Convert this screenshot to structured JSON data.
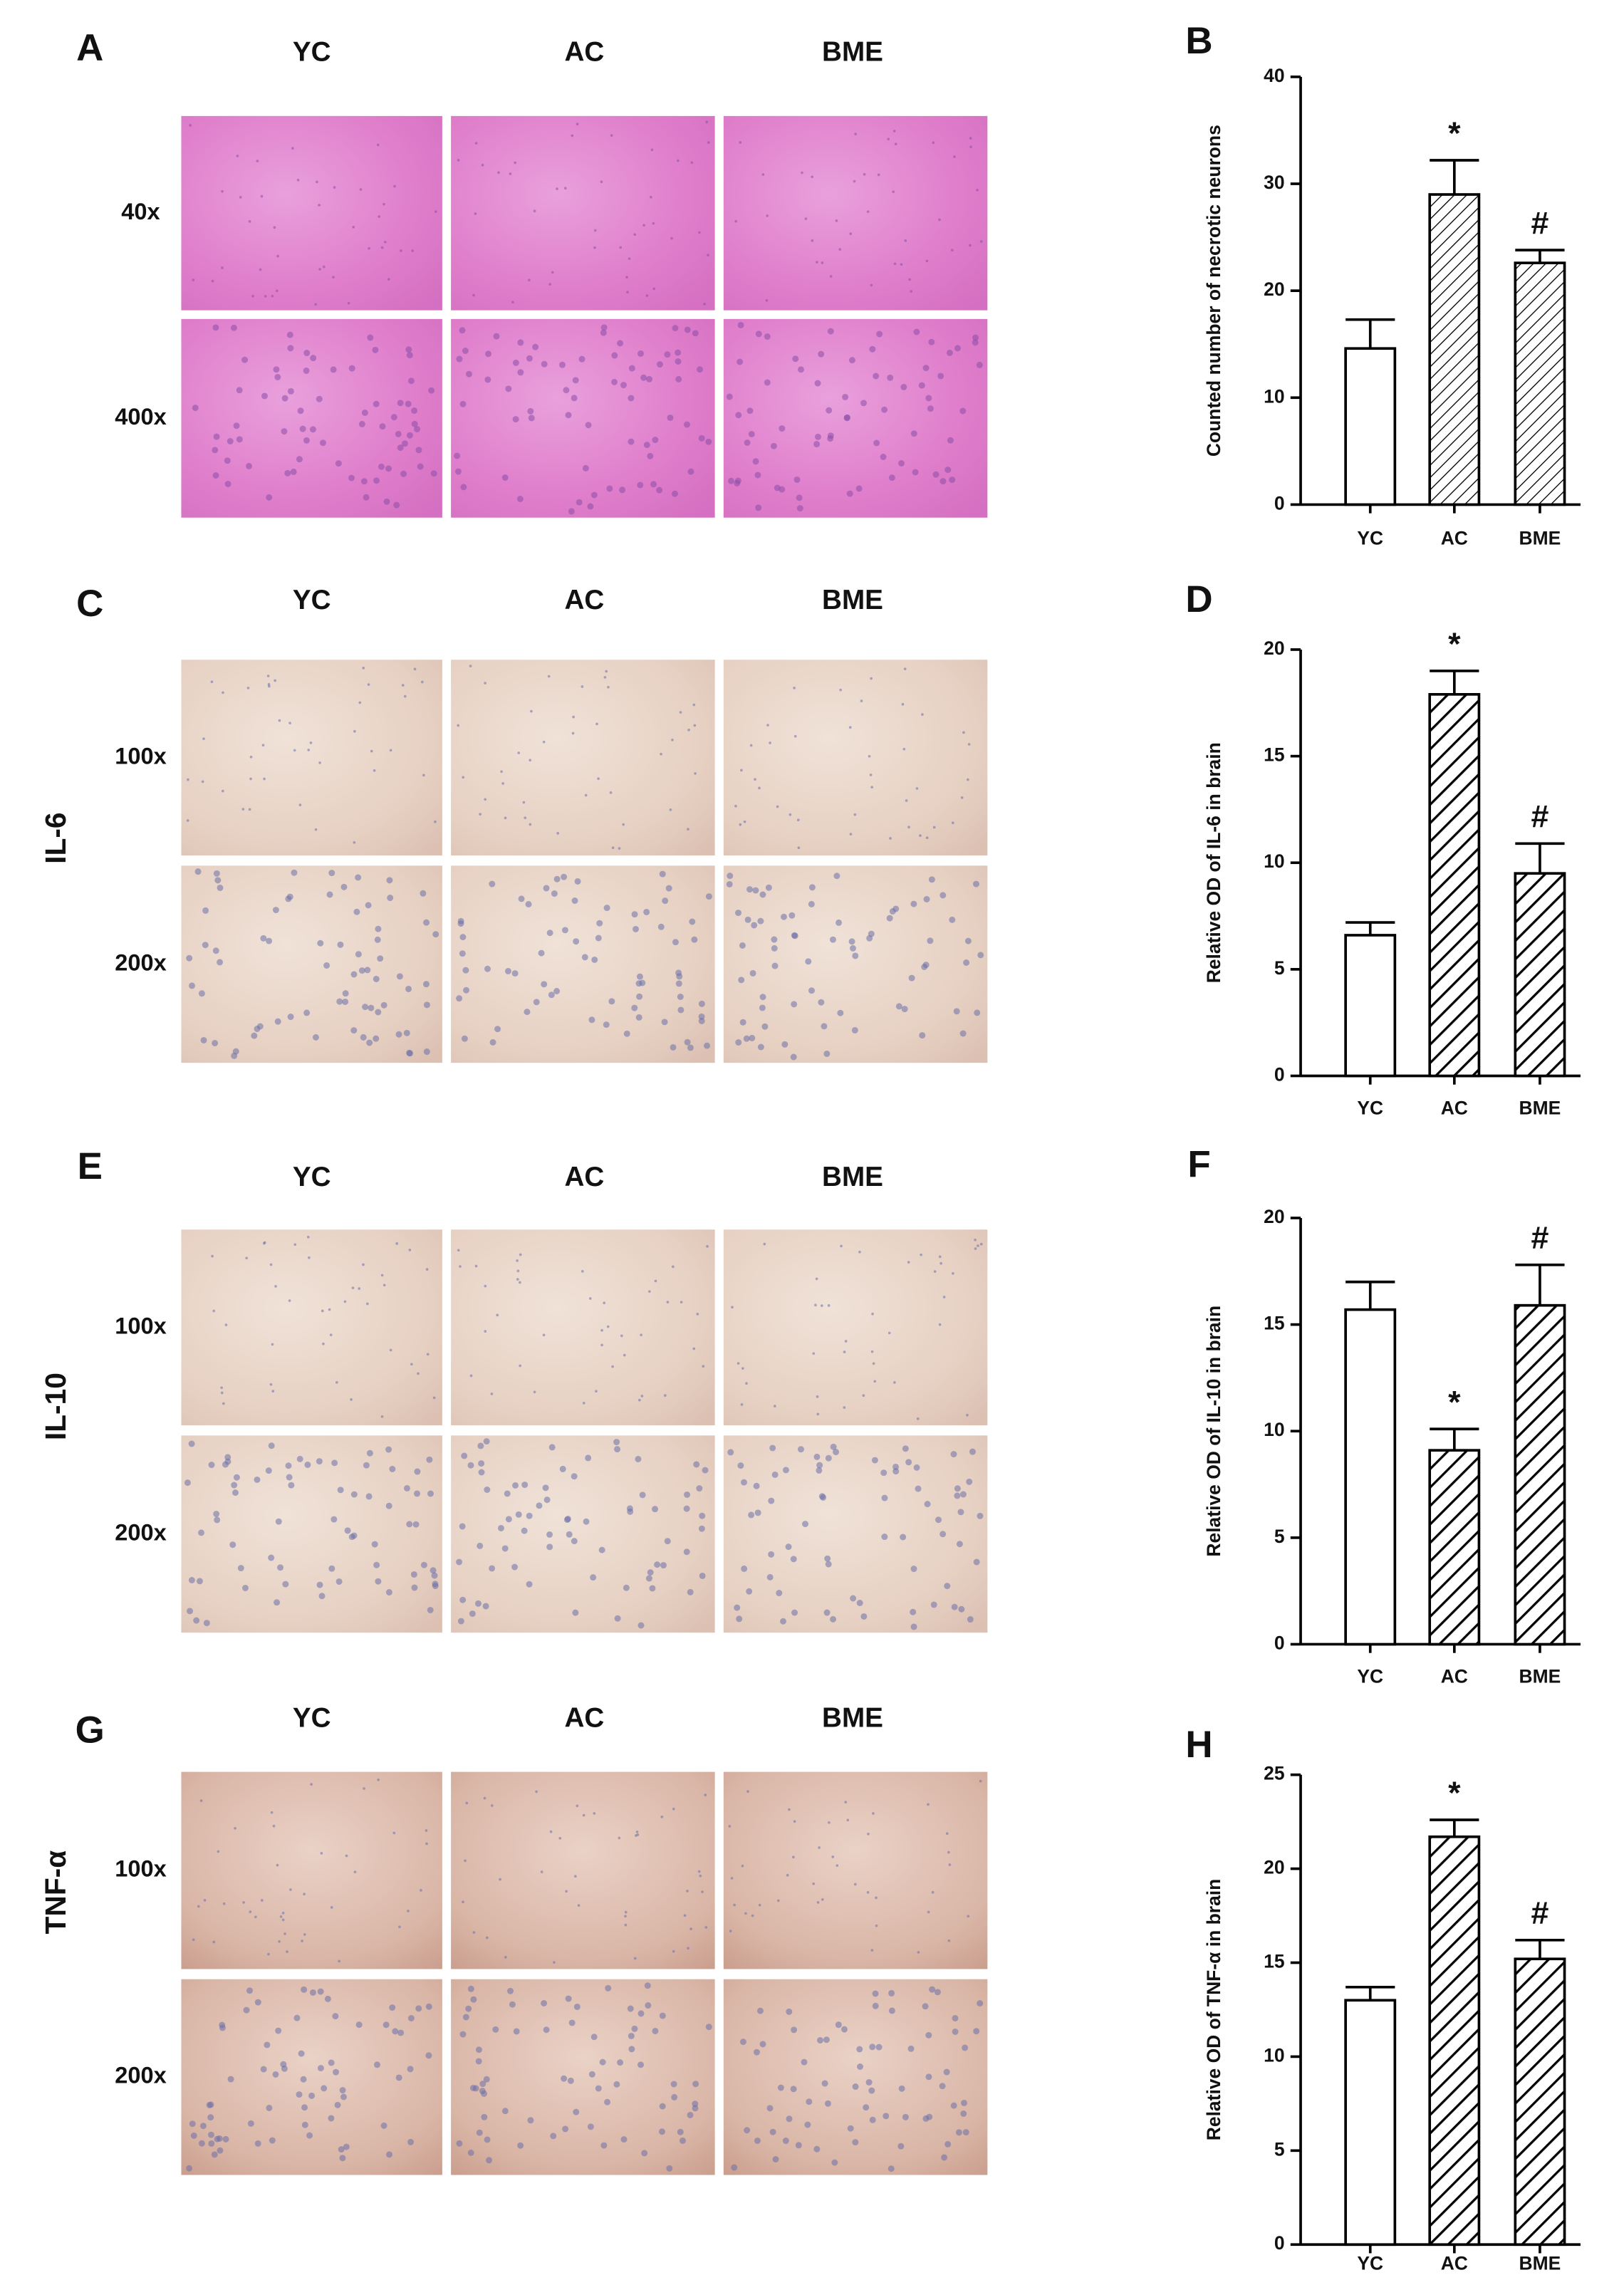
{
  "chart_data": [
    {
      "type": "bar",
      "panel": "B",
      "ylabel": "Counted number of necrotic neurons",
      "categories": [
        "YC",
        "AC",
        "BME"
      ],
      "values": [
        14.6,
        29.0,
        22.6
      ],
      "errors": [
        2.7,
        3.2,
        1.2
      ],
      "annotations": [
        null,
        "*",
        "#"
      ],
      "hatch": [
        false,
        true,
        true
      ],
      "hatch_style": "thin",
      "color": "#000000",
      "ylim": [
        0,
        40
      ],
      "yticks": [
        0,
        10,
        20,
        30,
        40
      ]
    },
    {
      "type": "bar",
      "panel": "D",
      "ylabel": "Relative OD of IL-6 in brain",
      "categories": [
        "YC",
        "AC",
        "BME"
      ],
      "values": [
        6.6,
        17.9,
        9.5
      ],
      "errors": [
        0.6,
        1.1,
        1.4
      ],
      "annotations": [
        null,
        "*",
        "#"
      ],
      "hatch": [
        false,
        true,
        true
      ],
      "hatch_style": "thick",
      "color": "#000000",
      "ylim": [
        0,
        20
      ],
      "yticks": [
        0,
        5,
        10,
        15,
        20
      ]
    },
    {
      "type": "bar",
      "panel": "F",
      "ylabel": "Relative OD of IL-10 in brain",
      "categories": [
        "YC",
        "AC",
        "BME"
      ],
      "values": [
        15.7,
        9.1,
        15.9
      ],
      "errors": [
        1.3,
        1.0,
        1.9
      ],
      "annotations": [
        null,
        "*",
        "#"
      ],
      "hatch": [
        false,
        true,
        true
      ],
      "hatch_style": "thick",
      "color": "#000000",
      "ylim": [
        0,
        20
      ],
      "yticks": [
        0,
        5,
        10,
        15,
        20
      ]
    },
    {
      "type": "bar",
      "panel": "H",
      "ylabel": "Relative OD of TNF-α in brain",
      "categories": [
        "YC",
        "AC",
        "BME"
      ],
      "values": [
        13.0,
        21.7,
        15.2
      ],
      "errors": [
        0.7,
        0.9,
        1.0
      ],
      "annotations": [
        null,
        "*",
        "#"
      ],
      "hatch": [
        false,
        true,
        true
      ],
      "hatch_style": "thick",
      "color": "#000000",
      "ylim": [
        0,
        25
      ],
      "yticks": [
        0,
        5,
        10,
        15,
        20,
        25
      ]
    }
  ],
  "micrographs": [
    {
      "panel": "A",
      "columns": [
        "YC",
        "AC",
        "BME"
      ],
      "rows": [
        "40x",
        "400x"
      ]
    },
    {
      "panel": "C",
      "marker": "IL-6",
      "columns": [
        "YC",
        "AC",
        "BME"
      ],
      "rows": [
        "100x",
        "200x"
      ]
    },
    {
      "panel": "E",
      "marker": "IL-10",
      "columns": [
        "YC",
        "AC",
        "BME"
      ],
      "rows": [
        "100x",
        "200x"
      ]
    },
    {
      "panel": "G",
      "marker": "TNF-α",
      "columns": [
        "YC",
        "AC",
        "BME"
      ],
      "rows": [
        "100x",
        "200x"
      ]
    }
  ]
}
